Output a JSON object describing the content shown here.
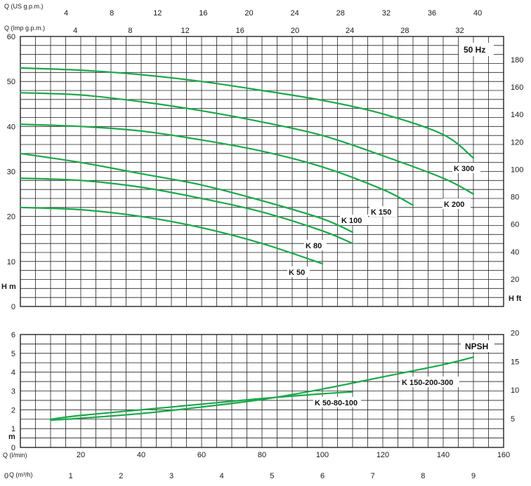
{
  "chart_data": [
    {
      "type": "line",
      "title": "",
      "badge": "50 Hz",
      "y_left": {
        "label": "H m",
        "range": [
          0,
          60
        ],
        "ticks": [
          0,
          10,
          20,
          30,
          40,
          50,
          60
        ]
      },
      "y_right": {
        "label": "H ft",
        "range": [
          0,
          196.85
        ],
        "ticks": [
          20,
          40,
          60,
          80,
          100,
          120,
          140,
          160,
          180
        ]
      },
      "x_top_us": {
        "label": "Q (US g.p.m.)",
        "ticks": [
          4,
          8,
          12,
          16,
          20,
          24,
          28,
          32,
          36,
          40
        ]
      },
      "x_top_imp": {
        "label": "Q (Imp g.p.m.)",
        "ticks": [
          4,
          8,
          12,
          16,
          20,
          24,
          28,
          32
        ]
      },
      "x_unit": "l/min",
      "x_range": [
        0,
        160
      ],
      "grid": true,
      "series": [
        {
          "name": "K 300",
          "x": [
            0,
            20,
            40,
            60,
            80,
            100,
            120,
            140,
            150
          ],
          "y": [
            53,
            52.5,
            51.5,
            50,
            48,
            45.8,
            42.8,
            38.2,
            33
          ]
        },
        {
          "name": "K 200",
          "x": [
            0,
            20,
            40,
            60,
            80,
            100,
            120,
            140,
            150
          ],
          "y": [
            47.5,
            47,
            45.5,
            43.5,
            41,
            38,
            33.5,
            28.5,
            25
          ]
        },
        {
          "name": "K 150",
          "x": [
            0,
            20,
            40,
            60,
            80,
            100,
            120,
            130
          ],
          "y": [
            40.5,
            40,
            39,
            37,
            34.5,
            31,
            26,
            22.5
          ]
        },
        {
          "name": "K 100",
          "x": [
            0,
            20,
            40,
            60,
            80,
            100,
            110
          ],
          "y": [
            34,
            32,
            29.5,
            27,
            23.5,
            19.5,
            16.5
          ]
        },
        {
          "name": "K 80",
          "x": [
            0,
            20,
            40,
            60,
            80,
            100,
            110
          ],
          "y": [
            28.5,
            28,
            26.5,
            24,
            21,
            16.8,
            14
          ]
        },
        {
          "name": "K 50",
          "x": [
            0,
            20,
            40,
            60,
            80,
            100
          ],
          "y": [
            22,
            21.5,
            20,
            17.5,
            14,
            9.5
          ]
        }
      ]
    },
    {
      "type": "line",
      "title": "",
      "badge": "NPSH",
      "y_left": {
        "label": "m",
        "range": [
          0,
          6
        ],
        "ticks": [
          0,
          1,
          2,
          3,
          4,
          5,
          6
        ]
      },
      "y_right": {
        "label": "",
        "range": [
          0,
          19.685
        ],
        "ticks": [
          5,
          10,
          15,
          20
        ]
      },
      "x_lmin": {
        "label": "Q (l/min)",
        "range": [
          0,
          160
        ],
        "ticks": [
          20,
          40,
          60,
          80,
          100,
          120,
          140,
          160
        ]
      },
      "x_m3h": {
        "label": "Q (m³/h)",
        "range": [
          0,
          9.6
        ],
        "ticks": [
          0,
          1,
          2,
          3,
          4,
          5,
          6,
          7,
          8,
          9
        ]
      },
      "grid": true,
      "series": [
        {
          "name": "K 150-200-300",
          "x": [
            10,
            20,
            40,
            60,
            80,
            100,
            120,
            140,
            150
          ],
          "y": [
            1.45,
            1.55,
            1.8,
            2.15,
            2.55,
            3.1,
            3.75,
            4.4,
            4.8
          ]
        },
        {
          "name": "K 50-80-100",
          "x": [
            10,
            20,
            40,
            60,
            80,
            100,
            110
          ],
          "y": [
            1.5,
            1.7,
            2.0,
            2.3,
            2.6,
            2.85,
            2.95
          ]
        }
      ]
    }
  ],
  "curve_colors": {
    "curve": "#1aa84a",
    "grid": "#222222",
    "ink": "#1a1a1a"
  }
}
